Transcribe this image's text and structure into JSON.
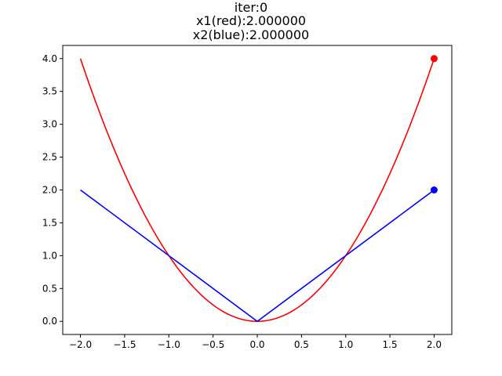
{
  "chart_data": {
    "type": "line",
    "title_lines": [
      "iter:0",
      "x1(red):2.000000",
      "x2(blue):2.000000"
    ],
    "xlabel": "",
    "ylabel": "",
    "xlim": [
      -2.2,
      2.2
    ],
    "ylim": [
      -0.2,
      4.2
    ],
    "xticks": [
      -2.0,
      -1.5,
      -1.0,
      -0.5,
      0.0,
      0.5,
      1.0,
      1.5,
      2.0
    ],
    "xtick_labels": [
      "−2.0",
      "−1.5",
      "−1.0",
      "−0.5",
      "0.0",
      "0.5",
      "1.0",
      "1.5",
      "2.0"
    ],
    "yticks": [
      0.0,
      0.5,
      1.0,
      1.5,
      2.0,
      2.5,
      3.0,
      3.5,
      4.0
    ],
    "ytick_labels": [
      "0.0",
      "0.5",
      "1.0",
      "1.5",
      "2.0",
      "2.5",
      "3.0",
      "3.5",
      "4.0"
    ],
    "grid": false,
    "series": [
      {
        "function": "x^2",
        "color": "#ff0000",
        "x": [
          -2.0,
          -1.75,
          -1.5,
          -1.25,
          -1.0,
          -0.75,
          -0.5,
          -0.25,
          0.0,
          0.25,
          0.5,
          0.75,
          1.0,
          1.25,
          1.5,
          1.75,
          2.0
        ],
        "y": [
          4.0,
          3.0625,
          2.25,
          1.5625,
          1.0,
          0.5625,
          0.25,
          0.0625,
          0.0,
          0.0625,
          0.25,
          0.5625,
          1.0,
          1.5625,
          2.25,
          3.0625,
          4.0
        ],
        "marker": {
          "x": 2.0,
          "y": 4.0
        }
      },
      {
        "function": "|x|",
        "color": "#0000ff",
        "x": [
          -2.0,
          0.0,
          2.0
        ],
        "y": [
          2.0,
          0.0,
          2.0
        ],
        "marker": {
          "x": 2.0,
          "y": 2.0
        }
      }
    ]
  }
}
